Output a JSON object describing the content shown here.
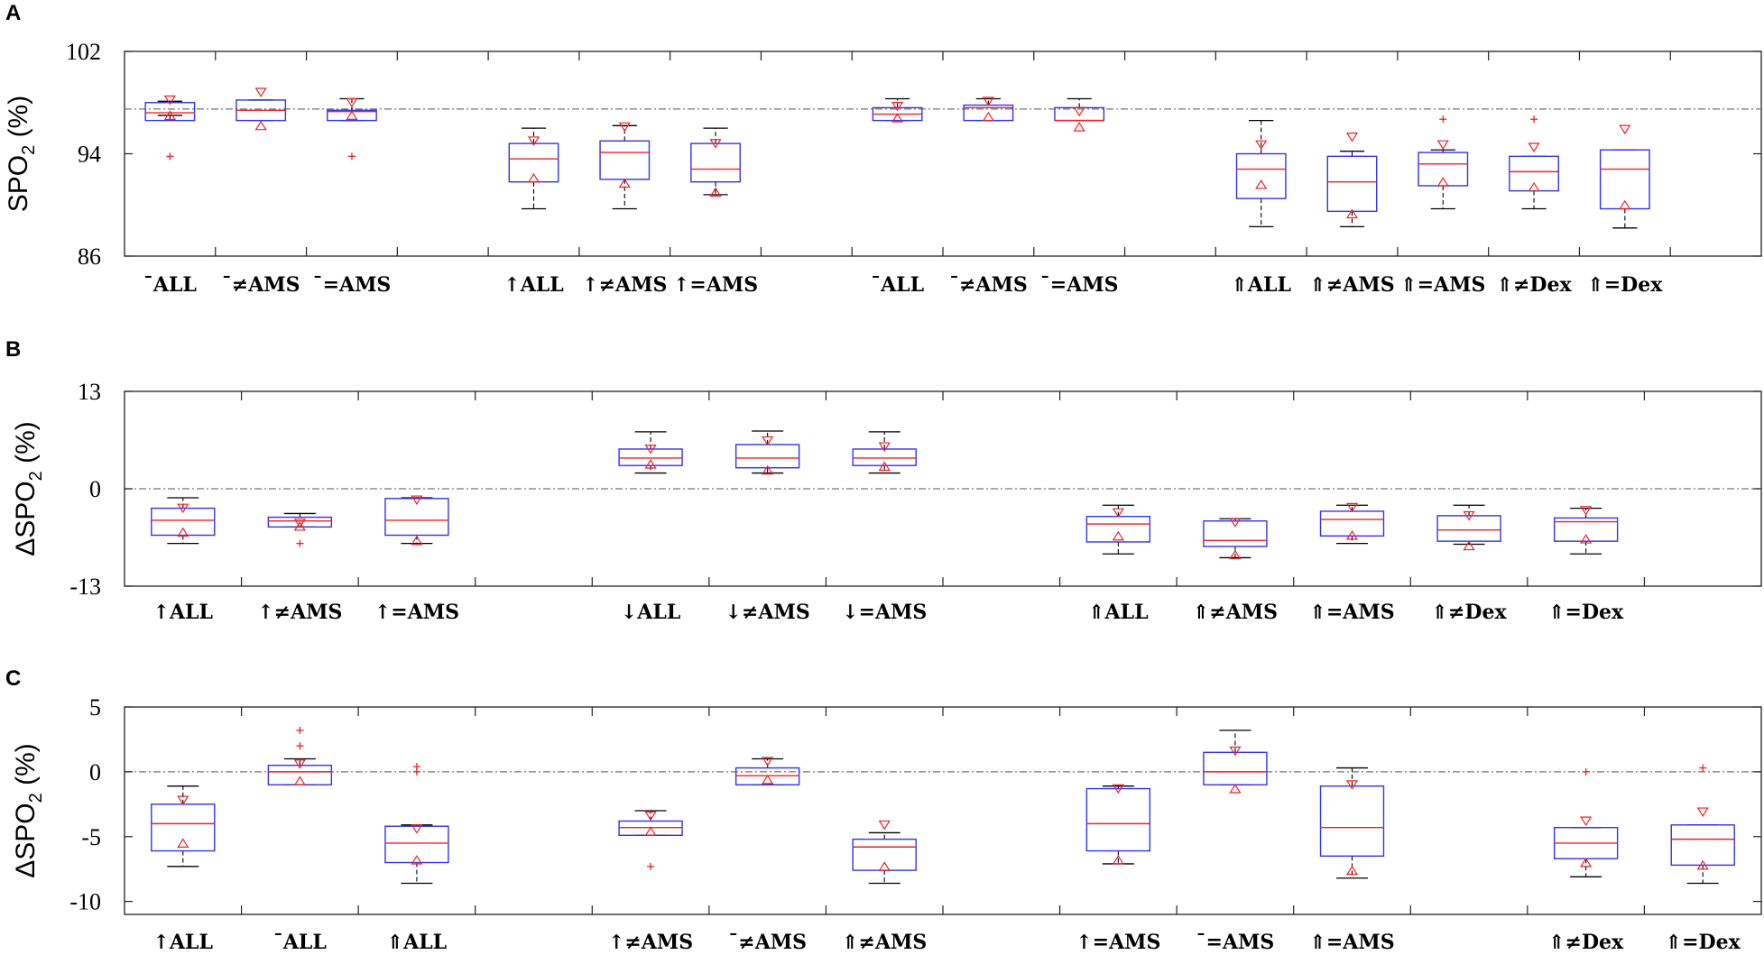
{
  "chart_data": [
    {
      "type": "box",
      "panel_label": "A",
      "ylabel": "SPO2 (%)",
      "ylabel_main": "SPO",
      "ylabel_sub": "2",
      "ylabel_suffix": " (%)",
      "ylim": [
        86,
        102
      ],
      "yticks": [
        "86",
        "94",
        "102"
      ],
      "reference_line": 97.5,
      "n_slots": 18,
      "categories": [
        {
          "slot": 0,
          "label": "¯ALL",
          "q1": 96.6,
          "median": 97.2,
          "q3": 98.0,
          "wlo": 97.0,
          "whi": 98.1,
          "up": 98.2,
          "dn": 97.0,
          "outliers": [
            93.8
          ]
        },
        {
          "slot": 1,
          "label": "¯≠AMS",
          "q1": 96.6,
          "median": 97.4,
          "q3": 98.2,
          "wlo": 96.6,
          "whi": 98.2,
          "up": 98.8,
          "dn": 96.2,
          "outliers": []
        },
        {
          "slot": 2,
          "label": "¯=AMS",
          "q1": 96.6,
          "median": 97.3,
          "q3": 97.4,
          "wlo": 96.6,
          "whi": 98.3,
          "up": 98.0,
          "dn": 97.0,
          "outliers": [
            93.8
          ]
        },
        {
          "slot": 4,
          "label": "↑ALL",
          "q1": 91.8,
          "median": 93.6,
          "q3": 94.8,
          "wlo": 89.7,
          "whi": 96.0,
          "up": 95.0,
          "dn": 92.1,
          "outliers": []
        },
        {
          "slot": 5,
          "label": "↑≠AMS",
          "q1": 92.0,
          "median": 94.1,
          "q3": 95.0,
          "wlo": 89.7,
          "whi": 96.2,
          "up": 96.1,
          "dn": 91.7,
          "outliers": []
        },
        {
          "slot": 6,
          "label": "↑=AMS",
          "q1": 91.8,
          "median": 92.8,
          "q3": 94.8,
          "wlo": 90.8,
          "whi": 96.0,
          "up": 94.8,
          "dn": 91.0,
          "outliers": []
        },
        {
          "slot": 8,
          "label": "¯ALL",
          "q1": 96.6,
          "median": 97.1,
          "q3": 97.6,
          "wlo": 96.6,
          "whi": 98.3,
          "up": 97.7,
          "dn": 96.8,
          "outliers": []
        },
        {
          "slot": 9,
          "label": "¯≠AMS",
          "q1": 96.6,
          "median": 97.6,
          "q3": 97.8,
          "wlo": 96.6,
          "whi": 98.3,
          "up": 98.1,
          "dn": 96.9,
          "outliers": []
        },
        {
          "slot": 10,
          "label": "¯=AMS",
          "q1": 96.6,
          "median": 96.6,
          "q3": 97.6,
          "wlo": 96.6,
          "whi": 98.3,
          "up": 97.3,
          "dn": 96.1,
          "outliers": []
        },
        {
          "slot": 12,
          "label": "⇑ALL",
          "q1": 90.5,
          "median": 92.8,
          "q3": 94.0,
          "wlo": 88.3,
          "whi": 96.6,
          "up": 94.7,
          "dn": 91.6,
          "outliers": []
        },
        {
          "slot": 13,
          "label": "⇑≠AMS",
          "q1": 89.5,
          "median": 91.8,
          "q3": 93.8,
          "wlo": 88.3,
          "whi": 94.2,
          "up": 95.3,
          "dn": 89.3,
          "outliers": []
        },
        {
          "slot": 14,
          "label": "⇑=AMS",
          "q1": 91.5,
          "median": 93.2,
          "q3": 94.1,
          "wlo": 89.7,
          "whi": 94.3,
          "up": 94.7,
          "dn": 91.8,
          "outliers": [
            96.7
          ]
        },
        {
          "slot": 15,
          "label": "⇑≠Dex",
          "q1": 91.1,
          "median": 92.6,
          "q3": 93.8,
          "wlo": 89.7,
          "whi": 93.8,
          "up": 94.5,
          "dn": 91.4,
          "outliers": [
            96.7
          ]
        },
        {
          "slot": 16,
          "label": "⇑=Dex",
          "q1": 89.7,
          "median": 92.8,
          "q3": 94.3,
          "wlo": 88.2,
          "whi": 94.3,
          "up": 95.9,
          "dn": 90.0,
          "outliers": []
        }
      ]
    },
    {
      "type": "box",
      "panel_label": "B",
      "ylabel": "ΔSPO2 (%)",
      "ylabel_main": "ΔSPO",
      "ylabel_sub": "2",
      "ylabel_suffix": " (%)",
      "ylim": [
        -13,
        13
      ],
      "yticks": [
        "-13",
        "0",
        "13"
      ],
      "reference_line": 0,
      "n_slots": 14,
      "categories": [
        {
          "slot": 0,
          "label": "↑ALL",
          "q1": -6.2,
          "median": -4.2,
          "q3": -2.6,
          "wlo": -7.3,
          "whi": -1.2,
          "up": -2.6,
          "dn": -5.8,
          "outliers": []
        },
        {
          "slot": 1,
          "label": "↑≠AMS",
          "q1": -5.1,
          "median": -4.3,
          "q3": -3.8,
          "wlo": -5.1,
          "whi": -3.3,
          "up": -4.6,
          "dn": -5.0,
          "outliers": [
            -7.3
          ]
        },
        {
          "slot": 2,
          "label": "↑=AMS",
          "q1": -6.2,
          "median": -4.2,
          "q3": -1.3,
          "wlo": -7.3,
          "whi": -1.2,
          "up": -1.5,
          "dn": -6.9,
          "outliers": []
        },
        {
          "slot": 4,
          "label": "↓ALL",
          "q1": 3.1,
          "median": 4.1,
          "q3": 5.3,
          "wlo": 2.1,
          "whi": 7.6,
          "up": 5.3,
          "dn": 3.3,
          "outliers": []
        },
        {
          "slot": 5,
          "label": "↓≠AMS",
          "q1": 2.8,
          "median": 4.1,
          "q3": 5.9,
          "wlo": 2.1,
          "whi": 7.7,
          "up": 6.4,
          "dn": 2.5,
          "outliers": []
        },
        {
          "slot": 6,
          "label": "↓=AMS",
          "q1": 3.1,
          "median": 4.1,
          "q3": 5.3,
          "wlo": 2.1,
          "whi": 7.6,
          "up": 5.6,
          "dn": 3.0,
          "outliers": []
        },
        {
          "slot": 8,
          "label": "⇑ALL",
          "q1": -7.1,
          "median": -4.7,
          "q3": -3.7,
          "wlo": -8.7,
          "whi": -2.2,
          "up": -3.2,
          "dn": -6.3,
          "outliers": []
        },
        {
          "slot": 9,
          "label": "⇑≠AMS",
          "q1": -7.7,
          "median": -6.9,
          "q3": -4.3,
          "wlo": -9.2,
          "whi": -4.0,
          "up": -4.5,
          "dn": -8.8,
          "outliers": []
        },
        {
          "slot": 10,
          "label": "⇑=AMS",
          "q1": -6.3,
          "median": -4.1,
          "q3": -3.0,
          "wlo": -7.3,
          "whi": -2.2,
          "up": -2.5,
          "dn": -6.2,
          "outliers": []
        },
        {
          "slot": 11,
          "label": "⇑≠Dex",
          "q1": -7.0,
          "median": -5.5,
          "q3": -3.6,
          "wlo": -7.4,
          "whi": -2.2,
          "up": -3.6,
          "dn": -7.6,
          "outliers": []
        },
        {
          "slot": 12,
          "label": "⇑=Dex",
          "q1": -7.0,
          "median": -4.4,
          "q3": -3.9,
          "wlo": -8.7,
          "whi": -2.6,
          "up": -2.9,
          "dn": -6.7,
          "outliers": []
        }
      ]
    },
    {
      "type": "box",
      "panel_label": "C",
      "ylabel": "ΔSPO2 (%)",
      "ylabel_main": "ΔSPO",
      "ylabel_sub": "2",
      "ylabel_suffix": " (%)",
      "ylim": [
        -11,
        5
      ],
      "yticks": [
        "5",
        "0",
        "-5",
        "-10"
      ],
      "ytick_values": [
        5,
        0,
        -5,
        -10
      ],
      "reference_line": 0,
      "n_slots": 14,
      "categories": [
        {
          "slot": 0,
          "label": "↑ALL",
          "q1": -6.1,
          "median": -4.0,
          "q3": -2.5,
          "wlo": -7.3,
          "whi": -1.1,
          "up": -2.2,
          "dn": -5.5,
          "outliers": []
        },
        {
          "slot": 1,
          "label": "¯ALL",
          "q1": -1.0,
          "median": 0.0,
          "q3": 0.5,
          "wlo": -1.0,
          "whi": 1.0,
          "up": 0.6,
          "dn": -0.7,
          "outliers": [
            3.2,
            2.0
          ]
        },
        {
          "slot": 2,
          "label": "⇑ALL",
          "q1": -7.0,
          "median": -5.5,
          "q3": -4.2,
          "wlo": -8.6,
          "whi": -4.1,
          "up": -4.4,
          "dn": -6.8,
          "outliers": [
            0.4,
            0.0
          ]
        },
        {
          "slot": 4,
          "label": "↑≠AMS",
          "q1": -4.9,
          "median": -4.3,
          "q3": -3.8,
          "wlo": -4.9,
          "whi": -3.0,
          "up": -3.4,
          "dn": -4.6,
          "outliers": [
            -7.3
          ]
        },
        {
          "slot": 5,
          "label": "¯≠AMS",
          "q1": -1.0,
          "median": -0.3,
          "q3": 0.3,
          "wlo": -1.0,
          "whi": 1.0,
          "up": 0.8,
          "dn": -0.6,
          "outliers": []
        },
        {
          "slot": 6,
          "label": "⇑≠AMS",
          "q1": -7.6,
          "median": -5.8,
          "q3": -5.2,
          "wlo": -8.6,
          "whi": -4.7,
          "up": -4.1,
          "dn": -7.3,
          "outliers": []
        },
        {
          "slot": 8,
          "label": "↑=AMS",
          "q1": -6.1,
          "median": -4.0,
          "q3": -1.3,
          "wlo": -7.1,
          "whi": -1.1,
          "up": -1.3,
          "dn": -6.8,
          "outliers": []
        },
        {
          "slot": 9,
          "label": "¯=AMS",
          "q1": -1.0,
          "median": 0.0,
          "q3": 1.5,
          "wlo": -1.0,
          "whi": 3.2,
          "up": 1.6,
          "dn": -1.3,
          "outliers": []
        },
        {
          "slot": 10,
          "label": "⇑=AMS",
          "q1": -6.5,
          "median": -4.3,
          "q3": -1.1,
          "wlo": -8.2,
          "whi": 0.3,
          "up": -1.0,
          "dn": -7.6,
          "outliers": []
        },
        {
          "slot": 12,
          "label": "⇑≠Dex",
          "q1": -6.7,
          "median": -5.5,
          "q3": -4.3,
          "wlo": -8.1,
          "whi": -4.3,
          "up": -3.8,
          "dn": -7.0,
          "outliers": [
            0.0
          ]
        },
        {
          "slot": 13,
          "label": "⇑=Dex",
          "q1": -7.2,
          "median": -5.2,
          "q3": -4.1,
          "wlo": -8.6,
          "whi": -4.1,
          "up": -3.1,
          "dn": -7.2,
          "outliers": [
            0.3
          ]
        }
      ]
    }
  ]
}
